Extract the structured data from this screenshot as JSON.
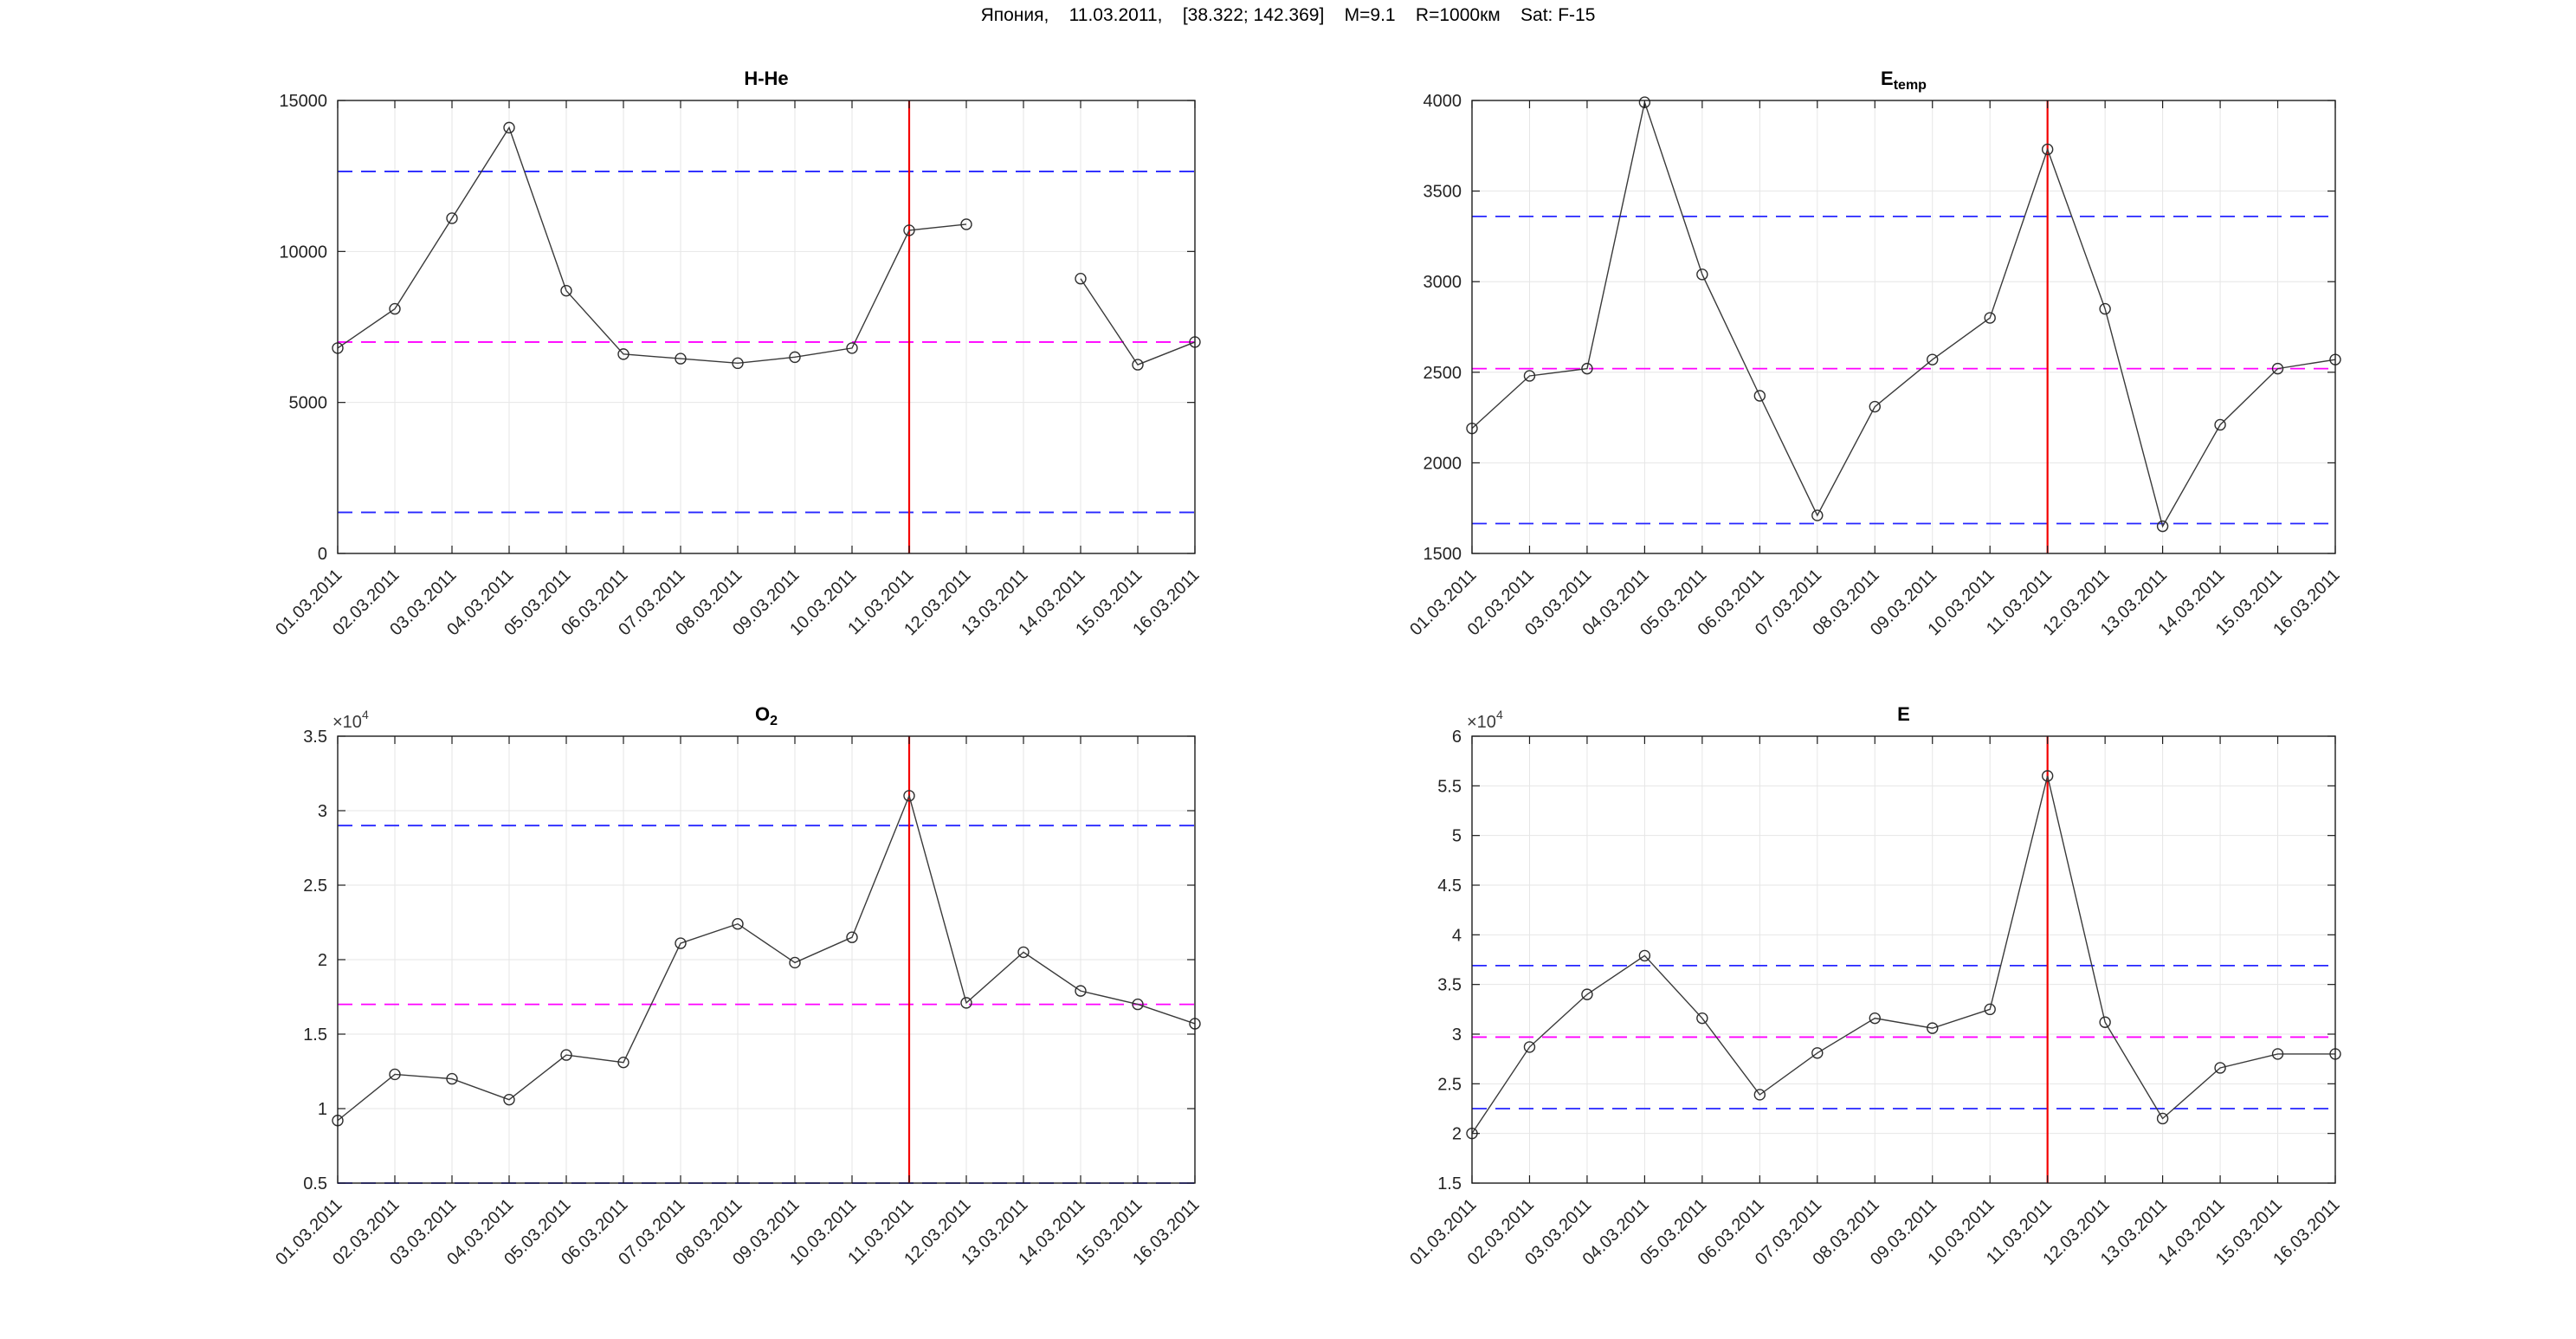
{
  "figure_title": "Япония,    11.03.2011,    [38.322; 142.369]    M=9.1    R=1000км    Sat: F-15",
  "event_date": "11.03.2011",
  "event_x_index": 10,
  "x_dates": [
    "01.03.2011",
    "02.03.2011",
    "03.03.2011",
    "04.03.2011",
    "05.03.2011",
    "06.03.2011",
    "07.03.2011",
    "08.03.2011",
    "09.03.2011",
    "10.03.2011",
    "11.03.2011",
    "12.03.2011",
    "13.03.2011",
    "14.03.2011",
    "15.03.2011",
    "16.03.2011"
  ],
  "colors": {
    "data_line": "#3a3a3a",
    "marker": "#2f2f2f",
    "bound_line": "#2626ff",
    "mean_line": "#ff00ff",
    "event_line": "#f40000",
    "grid": "#e6e6e6",
    "axis": "#1c1c1c",
    "tick_label": "#242424"
  },
  "chart_data": [
    {
      "id": "h-he",
      "type": "line",
      "title": {
        "text": "H-He",
        "sub": ""
      },
      "ylim": [
        0,
        15000
      ],
      "yticks": [
        0,
        5000,
        10000,
        15000
      ],
      "ytick_labels": [
        "0",
        "5000",
        "10000",
        "15000"
      ],
      "y_exponent": null,
      "categories_ref": "x_dates",
      "values": [
        6800,
        8100,
        11100,
        14100,
        8700,
        6600,
        6450,
        6300,
        6500,
        6800,
        10700,
        10900,
        null,
        9100,
        6250,
        7000
      ],
      "mean_line": 7000,
      "upper_line": 12650,
      "lower_line": 1360,
      "event_x": "11.03.2011"
    },
    {
      "id": "e-temp",
      "type": "line",
      "title": {
        "text": "E",
        "sub": "temp"
      },
      "ylim": [
        1500,
        4000
      ],
      "yticks": [
        1500,
        2000,
        2500,
        3000,
        3500,
        4000
      ],
      "ytick_labels": [
        "1500",
        "2000",
        "2500",
        "3000",
        "3500",
        "4000"
      ],
      "y_exponent": null,
      "categories_ref": "x_dates",
      "values": [
        2190,
        2480,
        2520,
        3990,
        3040,
        2370,
        1710,
        2310,
        2570,
        2800,
        3730,
        2850,
        1650,
        2210,
        2520,
        2570
      ],
      "mean_line": 2520,
      "upper_line": 3360,
      "lower_line": 1665,
      "event_x": "11.03.2011"
    },
    {
      "id": "o2",
      "type": "line",
      "title": {
        "text": "O",
        "sub": "2"
      },
      "ylim": [
        0.5,
        3.5
      ],
      "yticks": [
        0.5,
        1,
        1.5,
        2,
        2.5,
        3,
        3.5
      ],
      "ytick_labels": [
        "0.5",
        "1",
        "1.5",
        "2",
        "2.5",
        "3",
        "3.5"
      ],
      "y_exponent": {
        "prefix": "×10",
        "exp": "4"
      },
      "categories_ref": "x_dates",
      "values": [
        0.92,
        1.23,
        1.2,
        1.06,
        1.36,
        1.31,
        2.11,
        2.24,
        1.98,
        2.15,
        3.1,
        1.71,
        2.05,
        1.79,
        1.7,
        1.57
      ],
      "mean_line": 1.7,
      "upper_line": 2.9,
      "lower_line": 0.5,
      "event_x": "11.03.2011"
    },
    {
      "id": "e",
      "type": "line",
      "title": {
        "text": "E",
        "sub": ""
      },
      "ylim": [
        1.5,
        6
      ],
      "yticks": [
        1.5,
        2,
        2.5,
        3,
        3.5,
        4,
        4.5,
        5,
        5.5,
        6
      ],
      "ytick_labels": [
        "1.5",
        "2",
        "2.5",
        "3",
        "3.5",
        "4",
        "4.5",
        "5",
        "5.5",
        "6"
      ],
      "y_exponent": {
        "prefix": "×10",
        "exp": "4"
      },
      "categories_ref": "x_dates",
      "values": [
        2.0,
        2.87,
        3.4,
        3.79,
        3.16,
        2.39,
        2.81,
        3.16,
        3.06,
        3.25,
        5.6,
        3.12,
        2.15,
        2.66,
        2.8,
        2.8
      ],
      "mean_line": 2.97,
      "upper_line": 3.69,
      "lower_line": 2.25,
      "event_x": "11.03.2011"
    }
  ]
}
